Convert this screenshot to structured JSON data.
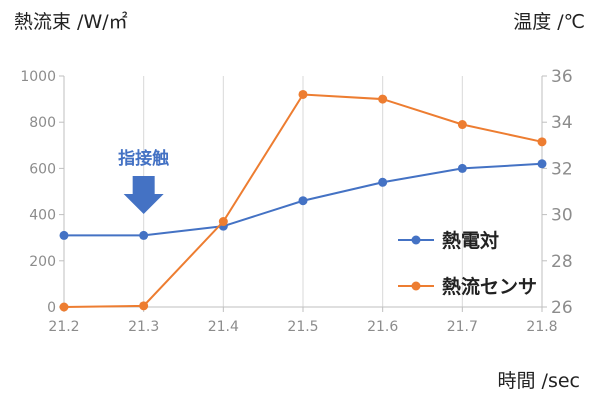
{
  "chart_data": {
    "type": "line",
    "x": [
      21.2,
      21.3,
      21.4,
      21.5,
      21.6,
      21.7,
      21.8
    ],
    "x_tick_labels": [
      "21.2",
      "21.3",
      "21.4",
      "21.5",
      "21.6",
      "21.7",
      "21.8"
    ],
    "xlabel": "時間 /sec",
    "xlim": [
      21.2,
      21.8
    ],
    "ylabel_left": "熱流束 /W/㎡",
    "ylim_left": [
      0,
      1000
    ],
    "y_left_ticks": [
      0,
      200,
      400,
      600,
      800,
      1000
    ],
    "y_left_tick_labels": [
      "0",
      "200",
      "400",
      "600",
      "800",
      "1000"
    ],
    "ylabel_right": "温度 /℃",
    "ylim_right": [
      26,
      36
    ],
    "y_right_ticks": [
      26,
      28,
      30,
      32,
      34,
      36
    ],
    "y_right_tick_labels": [
      "26",
      "28",
      "30",
      "32",
      "34",
      "36"
    ],
    "grid": "vertical",
    "legend_position": "lower-right inside plot",
    "series": [
      {
        "name": "熱電対",
        "axis": "right",
        "color": "#4472c4",
        "values": [
          29.1,
          29.1,
          29.5,
          30.6,
          31.4,
          32.0,
          32.2
        ]
      },
      {
        "name": "熱流センサ",
        "axis": "left",
        "color": "#ed7d31",
        "values": [
          0,
          5,
          370,
          920,
          900,
          790,
          715
        ]
      }
    ],
    "annotations": [
      {
        "text": "指接触",
        "x": 21.3,
        "color": "#4472c4",
        "shape": "down-arrow"
      }
    ]
  }
}
